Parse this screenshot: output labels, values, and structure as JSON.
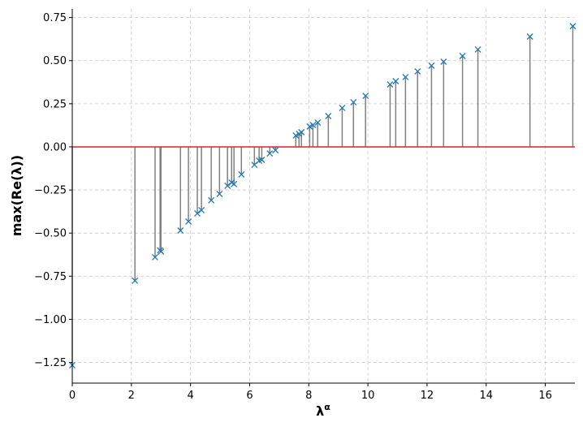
{
  "chart_data": {
    "type": "stem",
    "xlabel": "λα",
    "ylabel": "max(Re(λ))",
    "xlim": [
      0,
      17.0
    ],
    "ylim": [
      -1.37,
      0.8
    ],
    "xticks": [
      0,
      2,
      4,
      6,
      8,
      10,
      12,
      14,
      16
    ],
    "yticks": [
      {
        "value": 0.75,
        "label": "0.75"
      },
      {
        "value": 0.5,
        "label": "0.50"
      },
      {
        "value": 0.25,
        "label": "0.25"
      },
      {
        "value": 0,
        "label": "0.00"
      },
      {
        "value": -0.25,
        "label": "−0.25"
      },
      {
        "value": -0.5,
        "label": "−0.50"
      },
      {
        "value": -0.75,
        "label": "−0.75"
      },
      {
        "value": -1.0,
        "label": "−1.00"
      },
      {
        "value": -1.25,
        "label": "−1.25"
      }
    ],
    "grid": true,
    "marker_color": "#1f77b4",
    "stem_color": "#808080",
    "baseline_color": "#d62728",
    "x": [
      0,
      2.12,
      2.8,
      2.97,
      3.0,
      3.66,
      3.93,
      4.23,
      4.37,
      4.7,
      4.98,
      5.25,
      5.39,
      5.47,
      5.72,
      6.16,
      6.32,
      6.41,
      6.68,
      6.87,
      7.56,
      7.67,
      7.75,
      8.03,
      8.14,
      8.3,
      8.66,
      9.13,
      9.51,
      9.92,
      10.75,
      10.94,
      11.27,
      11.68,
      12.15,
      12.56,
      13.2,
      13.72,
      15.48,
      16.93
    ],
    "values": [
      -1.266,
      -0.776,
      -0.64,
      -0.6,
      -0.607,
      -0.485,
      -0.433,
      -0.386,
      -0.367,
      -0.31,
      -0.273,
      -0.226,
      -0.207,
      -0.216,
      -0.16,
      -0.104,
      -0.08,
      -0.075,
      -0.038,
      -0.019,
      0.066,
      0.075,
      0.085,
      0.118,
      0.127,
      0.141,
      0.179,
      0.226,
      0.259,
      0.296,
      0.362,
      0.381,
      0.405,
      0.438,
      0.471,
      0.494,
      0.527,
      0.565,
      0.64,
      0.7
    ]
  }
}
